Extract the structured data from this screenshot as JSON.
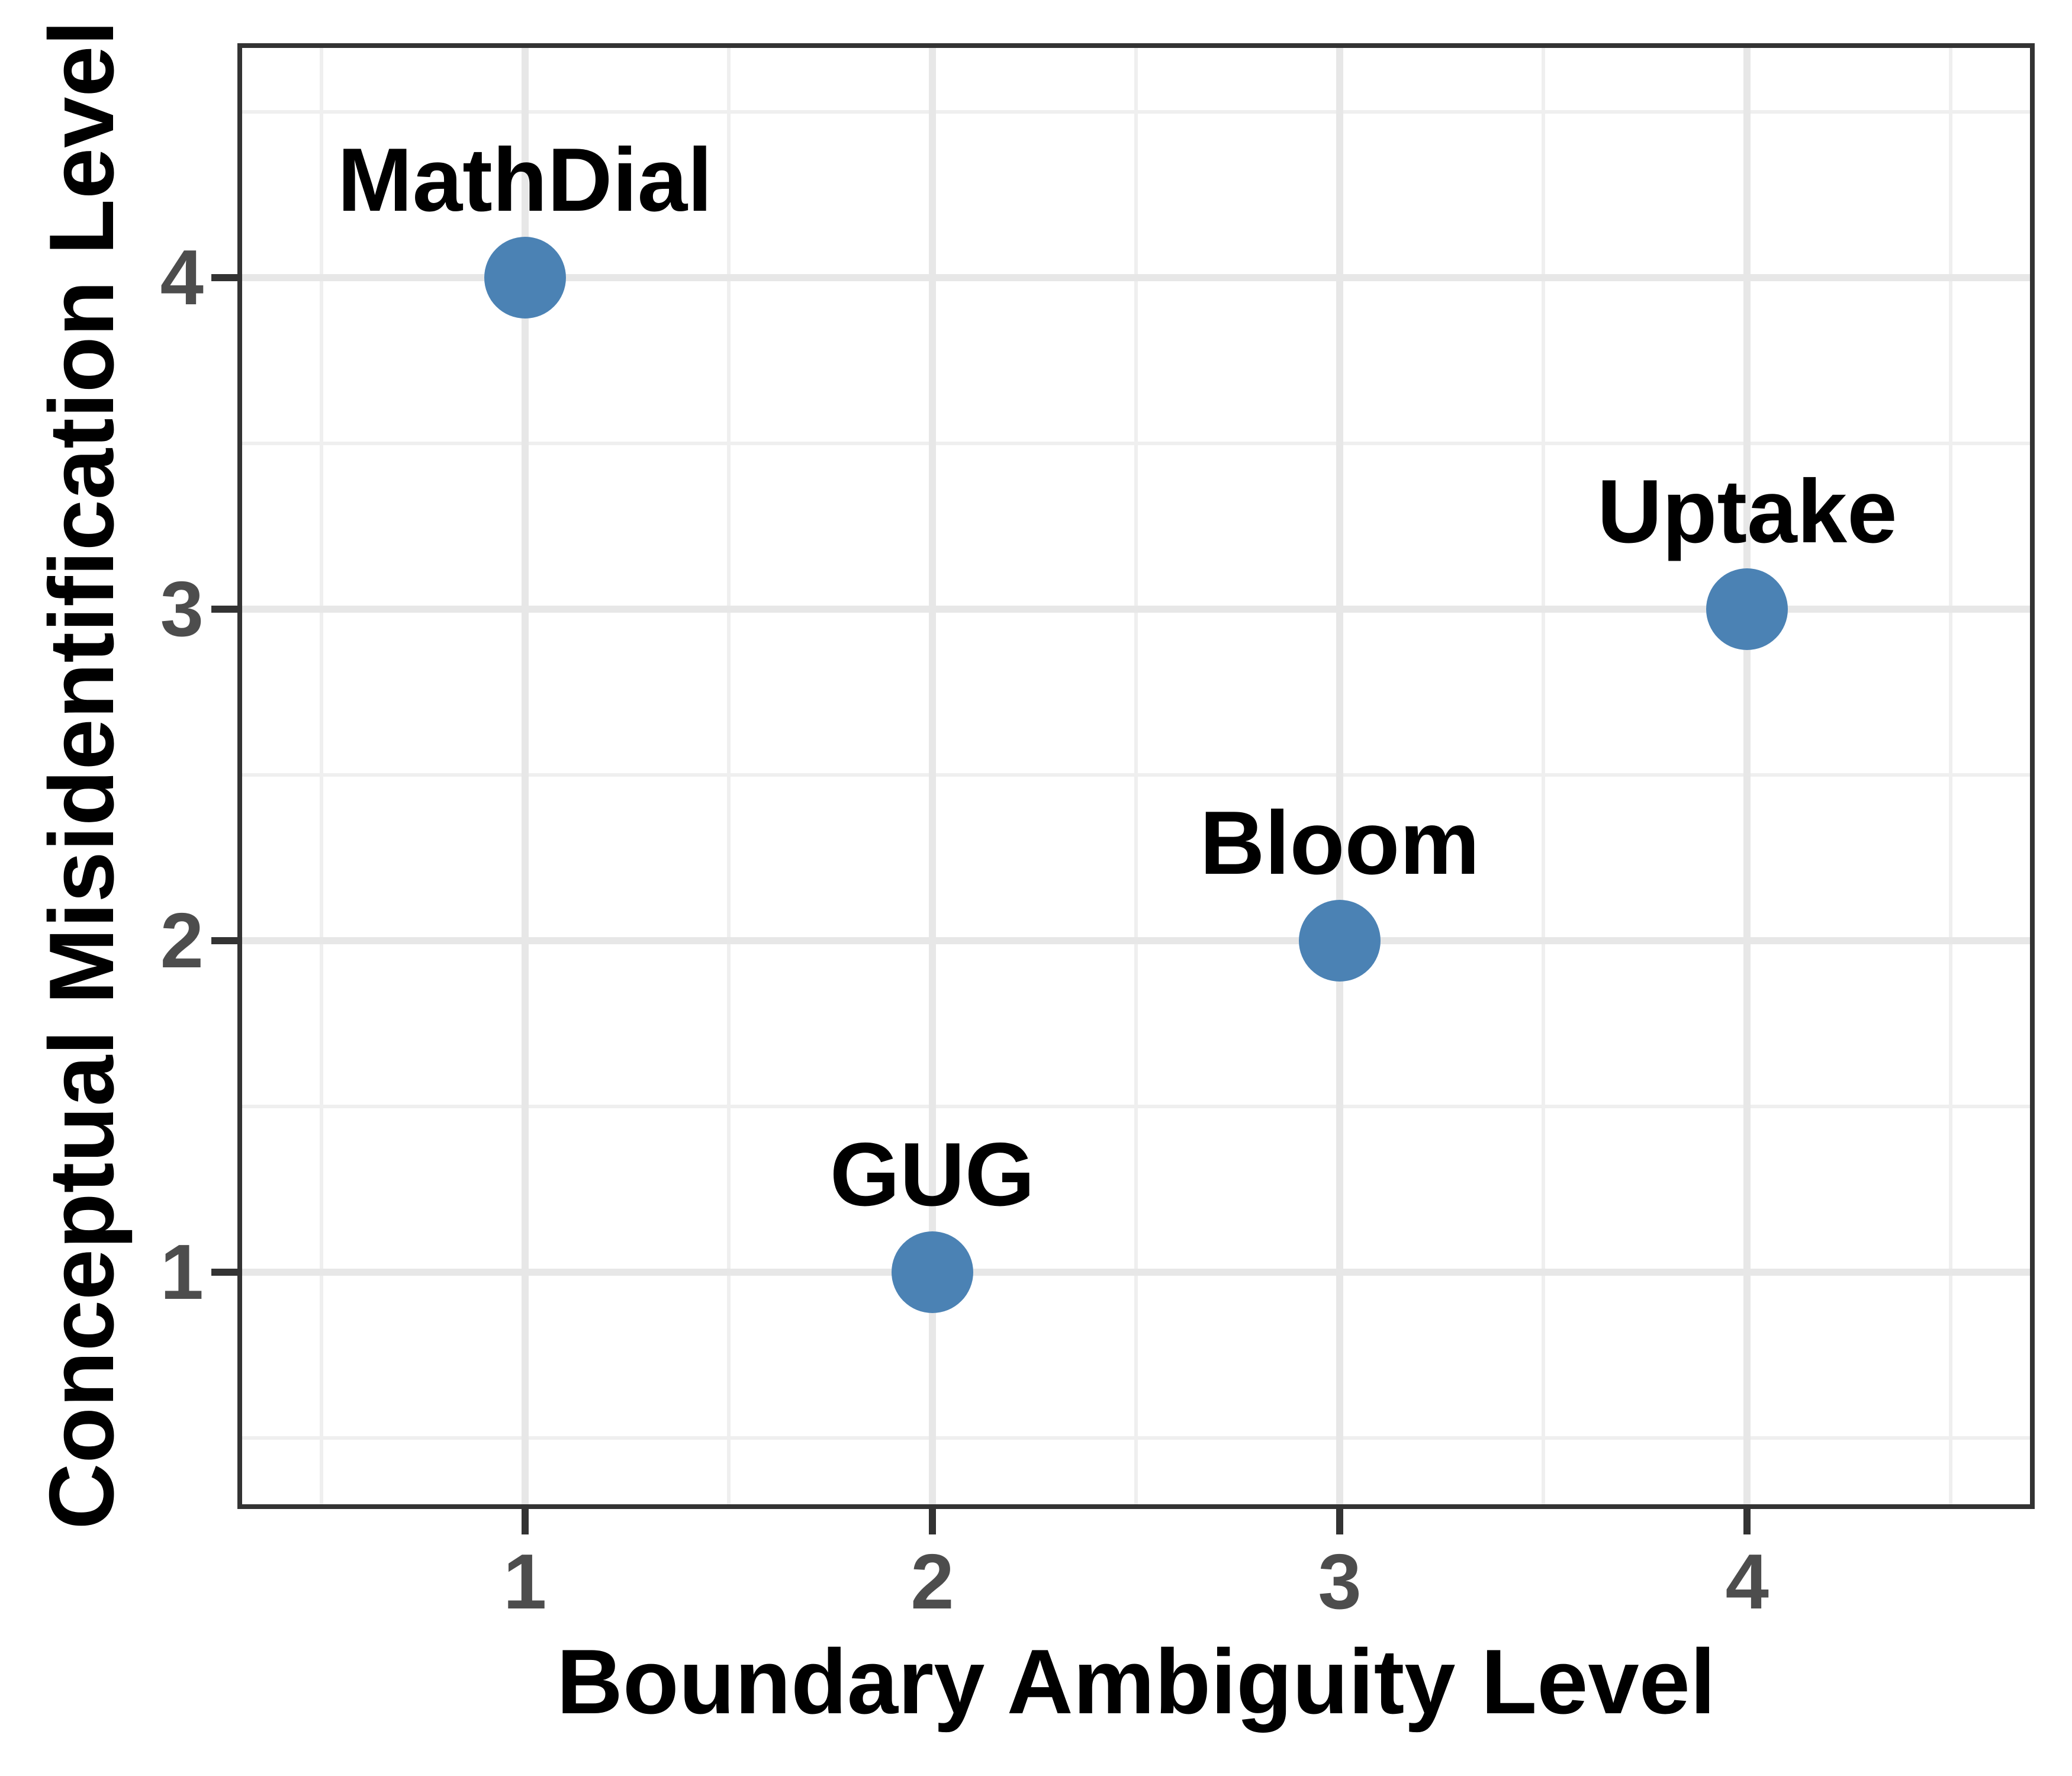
{
  "chart_data": {
    "type": "scatter",
    "title": "",
    "xlabel": "Boundary Ambiguity Level",
    "ylabel": "Conceptual Misidentification Level",
    "x_ticks": [
      1,
      2,
      3,
      4
    ],
    "y_ticks": [
      1,
      2,
      3,
      4
    ],
    "x_minor_ticks": [
      0.5,
      1.5,
      2.5,
      3.5,
      4.5
    ],
    "y_minor_ticks": [
      0.5,
      1.5,
      2.5,
      3.5,
      4.5
    ],
    "xlim": [
      0.3,
      4.7
    ],
    "ylim": [
      0.3,
      4.7
    ],
    "grid": "major+minor",
    "legend_position": "none",
    "points": [
      {
        "label": "MathDial",
        "x": 1,
        "y": 4
      },
      {
        "label": "GUG",
        "x": 2,
        "y": 1
      },
      {
        "label": "Bloom",
        "x": 3,
        "y": 2
      },
      {
        "label": "Uptake",
        "x": 4,
        "y": 3
      }
    ],
    "colors": {
      "point_fill": "#4b82b4",
      "point_label": "#000000",
      "axis_title": "#000000",
      "tick_label": "#4d4d4d",
      "tick_mark": "#333333",
      "panel_border": "#333333",
      "grid_major": "#e7e7e7",
      "grid_minor": "#efefef",
      "background": "#ffffff"
    }
  }
}
